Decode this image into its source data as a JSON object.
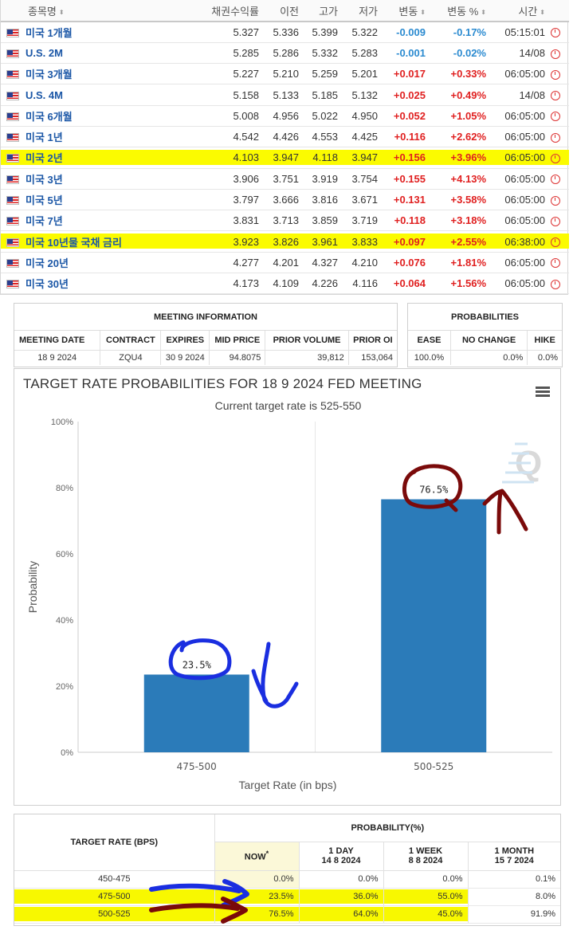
{
  "quotes": {
    "headers": {
      "name": "종목명",
      "yield": "채권수익률",
      "prev": "이전",
      "high": "고가",
      "low": "저가",
      "change": "변동",
      "change_pct": "변동 %",
      "time": "시간"
    },
    "rows": [
      {
        "name": "미국 1개월",
        "yield": "5.327",
        "prev": "5.336",
        "high": "5.399",
        "low": "5.322",
        "change": "-0.009",
        "change_pct": "-0.17%",
        "time": "05:15:01",
        "dir": "neg",
        "highlight": false
      },
      {
        "name": "U.S. 2M",
        "yield": "5.285",
        "prev": "5.286",
        "high": "5.332",
        "low": "5.283",
        "change": "-0.001",
        "change_pct": "-0.02%",
        "time": "14/08",
        "dir": "neg",
        "highlight": false
      },
      {
        "name": "미국 3개월",
        "yield": "5.227",
        "prev": "5.210",
        "high": "5.259",
        "low": "5.201",
        "change": "+0.017",
        "change_pct": "+0.33%",
        "time": "06:05:00",
        "dir": "pos",
        "highlight": false
      },
      {
        "name": "U.S. 4M",
        "yield": "5.158",
        "prev": "5.133",
        "high": "5.185",
        "low": "5.132",
        "change": "+0.025",
        "change_pct": "+0.49%",
        "time": "14/08",
        "dir": "pos",
        "highlight": false
      },
      {
        "name": "미국 6개월",
        "yield": "5.008",
        "prev": "4.956",
        "high": "5.022",
        "low": "4.950",
        "change": "+0.052",
        "change_pct": "+1.05%",
        "time": "06:05:00",
        "dir": "pos",
        "highlight": false
      },
      {
        "name": "미국 1년",
        "yield": "4.542",
        "prev": "4.426",
        "high": "4.553",
        "low": "4.425",
        "change": "+0.116",
        "change_pct": "+2.62%",
        "time": "06:05:00",
        "dir": "pos",
        "highlight": false
      },
      {
        "name": "미국 2년",
        "yield": "4.103",
        "prev": "3.947",
        "high": "4.118",
        "low": "3.947",
        "change": "+0.156",
        "change_pct": "+3.96%",
        "time": "06:05:00",
        "dir": "pos",
        "highlight": true
      },
      {
        "name": "미국 3년",
        "yield": "3.906",
        "prev": "3.751",
        "high": "3.919",
        "low": "3.754",
        "change": "+0.155",
        "change_pct": "+4.13%",
        "time": "06:05:00",
        "dir": "pos",
        "highlight": false
      },
      {
        "name": "미국 5년",
        "yield": "3.797",
        "prev": "3.666",
        "high": "3.816",
        "low": "3.671",
        "change": "+0.131",
        "change_pct": "+3.58%",
        "time": "06:05:00",
        "dir": "pos",
        "highlight": false
      },
      {
        "name": "미국 7년",
        "yield": "3.831",
        "prev": "3.713",
        "high": "3.859",
        "low": "3.719",
        "change": "+0.118",
        "change_pct": "+3.18%",
        "time": "06:05:00",
        "dir": "pos",
        "highlight": false
      },
      {
        "name": "미국 10년물 국채 금리",
        "yield": "3.923",
        "prev": "3.826",
        "high": "3.961",
        "low": "3.833",
        "change": "+0.097",
        "change_pct": "+2.55%",
        "time": "06:38:00",
        "dir": "pos",
        "highlight": true
      },
      {
        "name": "미국 20년",
        "yield": "4.277",
        "prev": "4.201",
        "high": "4.327",
        "low": "4.210",
        "change": "+0.076",
        "change_pct": "+1.81%",
        "time": "06:05:00",
        "dir": "pos",
        "highlight": false
      },
      {
        "name": "미국 30년",
        "yield": "4.173",
        "prev": "4.109",
        "high": "4.226",
        "low": "4.116",
        "change": "+0.064",
        "change_pct": "+1.56%",
        "time": "06:05:00",
        "dir": "pos",
        "highlight": false
      }
    ]
  },
  "meeting": {
    "caption": "MEETING INFORMATION",
    "headers": [
      "MEETING DATE",
      "CONTRACT",
      "EXPIRES",
      "MID PRICE",
      "PRIOR VOLUME",
      "PRIOR OI"
    ],
    "values": [
      "18 9 2024",
      "ZQU4",
      "30 9 2024",
      "94.8075",
      "39,812",
      "153,064"
    ]
  },
  "probabilities": {
    "caption": "PROBABILITIES",
    "headers": [
      "EASE",
      "NO CHANGE",
      "HIKE"
    ],
    "values": [
      "100.0%",
      "0.0%",
      "0.0%"
    ]
  },
  "chart_data": {
    "type": "bar",
    "title": "TARGET RATE PROBABILITIES FOR 18 9 2024 FED MEETING",
    "subtitle": "Current target rate is 525-550",
    "xlabel": "Target Rate (in bps)",
    "ylabel": "Probability",
    "categories": [
      "475-500",
      "500-525"
    ],
    "values": [
      23.5,
      76.5
    ],
    "data_labels": [
      "23.5%",
      "76.5%"
    ],
    "ylim": [
      0,
      100
    ],
    "yticks": [
      "0%",
      "20%",
      "40%",
      "60%",
      "80%",
      "100%"
    ],
    "grid": "vertical",
    "bar_color": "#2b7bb9"
  },
  "prob_table": {
    "row_header": "TARGET RATE (BPS)",
    "group_header": "PROBABILITY(%)",
    "columns": [
      {
        "label": "NOW",
        "sub": "",
        "mark": "*"
      },
      {
        "label": "1 DAY",
        "sub": "14 8 2024",
        "mark": ""
      },
      {
        "label": "1 WEEK",
        "sub": "8 8 2024",
        "mark": ""
      },
      {
        "label": "1 MONTH",
        "sub": "15 7 2024",
        "mark": ""
      }
    ],
    "rows": [
      {
        "rate": "450-475",
        "values": [
          "0.0%",
          "0.0%",
          "0.0%",
          "0.1%"
        ],
        "highlight": false
      },
      {
        "rate": "475-500",
        "values": [
          "23.5%",
          "36.0%",
          "55.0%",
          "8.0%"
        ],
        "highlight": true
      },
      {
        "rate": "500-525",
        "values": [
          "76.5%",
          "64.0%",
          "45.0%",
          "91.9%"
        ],
        "highlight": true
      }
    ]
  },
  "colors": {
    "highlight": "#fbfb00",
    "annotation_blue": "#1a2ee0",
    "annotation_red": "#7a0a0a",
    "positive": "#e02020",
    "negative": "#2a8ad0",
    "link": "#1a56a6"
  }
}
